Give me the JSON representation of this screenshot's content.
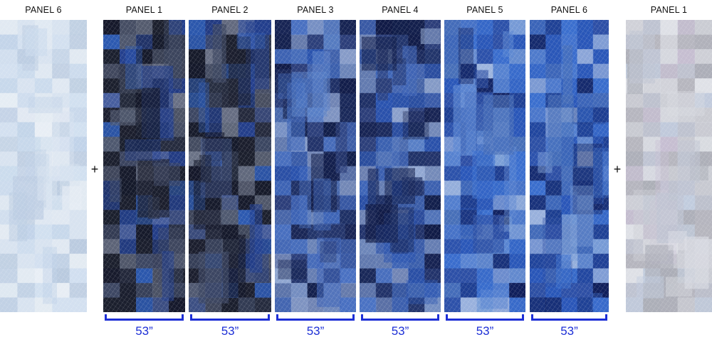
{
  "panels": [
    {
      "label": "PANEL 6",
      "tone": "light"
    },
    {
      "label": "PANEL 1",
      "tone": "dark"
    },
    {
      "label": "PANEL 2",
      "tone": "dark"
    },
    {
      "label": "PANEL 3",
      "tone": "mid"
    },
    {
      "label": "PANEL 4",
      "tone": "mid"
    },
    {
      "label": "PANEL 5",
      "tone": "blue"
    },
    {
      "label": "PANEL 6",
      "tone": "blue"
    },
    {
      "label": "PANEL 1",
      "tone": "grey"
    }
  ],
  "plus_symbol": "+",
  "measurements": [
    "53”",
    "53”",
    "53”",
    "53”",
    "53”",
    "53”"
  ],
  "colors": {
    "accent": "#1d2fd6"
  }
}
